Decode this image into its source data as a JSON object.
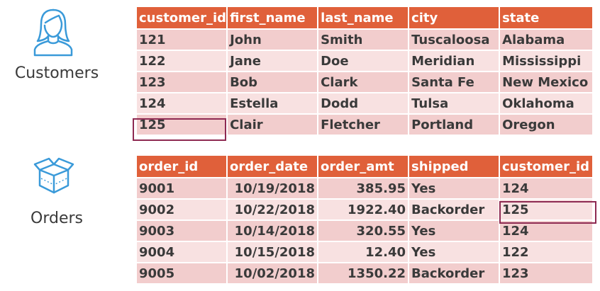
{
  "customers": {
    "label": "Customers",
    "icon": "person-icon",
    "columns": [
      "customer_id",
      "first_name",
      "last_name",
      "city",
      "state"
    ],
    "rows": [
      [
        "121",
        "John",
        "Smith",
        "Tuscaloosa",
        "Alabama"
      ],
      [
        "122",
        "Jane",
        "Doe",
        "Meridian",
        "Mississippi"
      ],
      [
        "123",
        "Bob",
        "Clark",
        "Santa Fe",
        "New Mexico"
      ],
      [
        "124",
        "Estella",
        "Dodd",
        "Tulsa",
        "Oklahoma"
      ],
      [
        "125",
        "Clair",
        "Fletcher",
        "Portland",
        "Oregon"
      ]
    ]
  },
  "orders": {
    "label": "Orders",
    "icon": "box-icon",
    "columns": [
      "order_id",
      "order_date",
      "order_amt",
      "shipped",
      "customer_id"
    ],
    "rows": [
      [
        "9001",
        "10/19/2018",
        "385.95",
        "Yes",
        "124"
      ],
      [
        "9002",
        "10/22/2018",
        "1922.40",
        "Backorder",
        "125"
      ],
      [
        "9003",
        "10/14/2018",
        "320.55",
        "Yes",
        "124"
      ],
      [
        "9004",
        "10/15/2018",
        "12.40",
        "Yes",
        "122"
      ],
      [
        "9005",
        "10/02/2018",
        "1350.22",
        "Backorder",
        "123"
      ]
    ]
  },
  "colors": {
    "header": "#e0603a",
    "row_dark": "#f2cdcd",
    "row_light": "#f8e1e1",
    "highlight": "#8e2a52",
    "icon": "#3a9ad9"
  }
}
